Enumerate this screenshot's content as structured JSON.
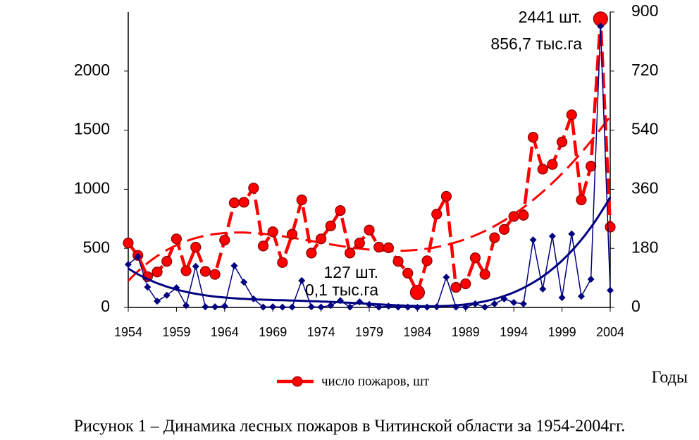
{
  "chart_data": {
    "type": "line",
    "x": [
      1954,
      1955,
      1956,
      1957,
      1958,
      1959,
      1960,
      1961,
      1962,
      1963,
      1964,
      1965,
      1966,
      1967,
      1968,
      1969,
      1970,
      1971,
      1972,
      1973,
      1974,
      1975,
      1976,
      1977,
      1978,
      1979,
      1980,
      1981,
      1982,
      1983,
      1984,
      1985,
      1986,
      1987,
      1988,
      1989,
      1990,
      1991,
      1992,
      1993,
      1994,
      1995,
      1996,
      1997,
      1998,
      1999,
      2000,
      2001,
      2002,
      2003,
      2004
    ],
    "series": [
      {
        "name": "число пожаров, шт",
        "color": "#ff0000",
        "values": [
          545,
          440,
          260,
          300,
          390,
          580,
          310,
          510,
          305,
          280,
          570,
          885,
          890,
          1010,
          520,
          640,
          380,
          620,
          910,
          460,
          580,
          690,
          820,
          460,
          545,
          655,
          510,
          505,
          390,
          290,
          127,
          395,
          790,
          940,
          170,
          200,
          420,
          280,
          590,
          660,
          770,
          780,
          1440,
          1170,
          1210,
          1400,
          1630,
          910,
          1195,
          2441,
          680
        ]
      },
      {
        "color": "#000080",
        "axis": "y2",
        "values": [
          131,
          155,
          62,
          19,
          37,
          60,
          6,
          125,
          2,
          2,
          4,
          127,
          77,
          26,
          1,
          2,
          1,
          1,
          82,
          2,
          1,
          6,
          21,
          1,
          17,
          9,
          1,
          4,
          1,
          1,
          0.1,
          1,
          2,
          92,
          1,
          1,
          11,
          1,
          11,
          26,
          15,
          11,
          206,
          56,
          217,
          30,
          224,
          34,
          86,
          856.7,
          52
        ]
      }
    ],
    "xlim": [
      1954,
      2004
    ],
    "xticks": [
      1954,
      1959,
      1964,
      1969,
      1974,
      1979,
      1984,
      1989,
      1994,
      1999,
      2004
    ],
    "ylim": [
      0,
      2500
    ],
    "yticks": [
      0,
      500,
      1000,
      1500,
      2000
    ],
    "y2lim": [
      0,
      900
    ],
    "y2ticks": [
      0,
      180,
      360,
      540,
      720,
      900
    ],
    "xlabel": "Годы",
    "annotations": [
      "2441 шт.",
      "856,7 тыс.га",
      "127 шт.",
      "0,1 тыс.га"
    ],
    "caption": "Рисунок 1 – Динамика лесных пожаров в Читинской области  за 1954-2004гг."
  }
}
